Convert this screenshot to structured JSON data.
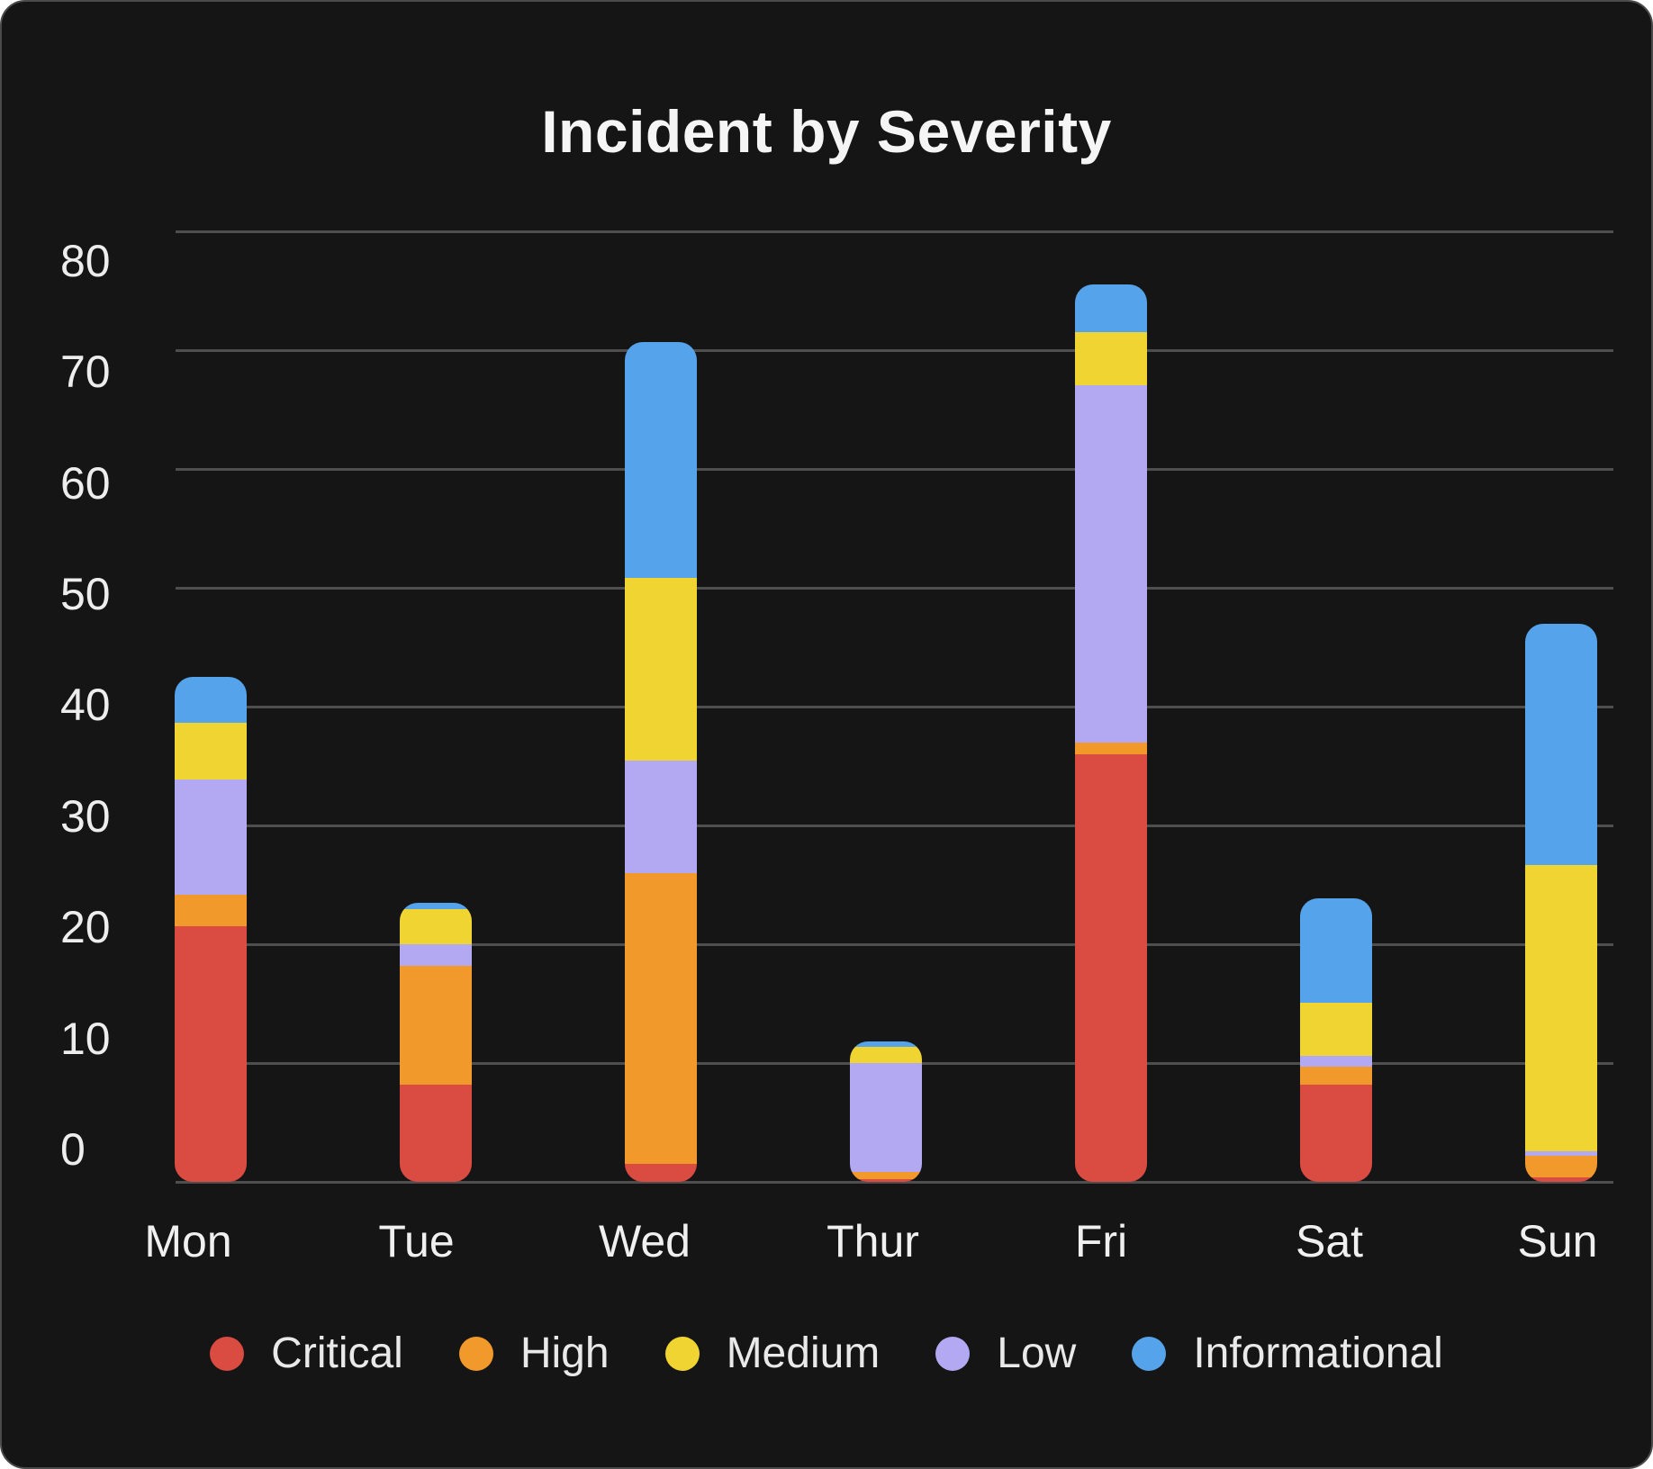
{
  "title": "Incident by Severity",
  "colors": {
    "critical": "#DA4B42",
    "high": "#F2992C",
    "medium": "#F0D431",
    "low": "#B3A8F2",
    "informational": "#55A3EA",
    "gridline": "#4E4E4E",
    "card_background": "#151515",
    "text": "#EFEFEF"
  },
  "legend": [
    {
      "label": "Critical",
      "key": "critical"
    },
    {
      "label": "High",
      "key": "high"
    },
    {
      "label": "Medium",
      "key": "medium"
    },
    {
      "label": "Low",
      "key": "low"
    },
    {
      "label": "Informational",
      "key": "informational"
    }
  ],
  "chart_data": {
    "type": "bar",
    "stacked": true,
    "title": "Incident by Severity",
    "xlabel": "",
    "ylabel": "",
    "categories": [
      "Mon",
      "Tue",
      "Wed",
      "Thur",
      "Fri",
      "Sat",
      "Sun"
    ],
    "series": [
      {
        "name": "Critical",
        "key": "critical",
        "values": [
          21.5,
          8.2,
          1.5,
          0.2,
          36.0,
          8.2,
          0.4
        ]
      },
      {
        "name": "High",
        "key": "high",
        "values": [
          2.7,
          10.0,
          24.5,
          0.6,
          1.0,
          1.5,
          1.8
        ]
      },
      {
        "name": "Medium",
        "key": "medium",
        "values": [
          4.8,
          3.0,
          15.4,
          1.4,
          4.5,
          4.5,
          24.1
        ]
      },
      {
        "name": "Low",
        "key": "low",
        "values": [
          9.7,
          1.8,
          9.5,
          9.2,
          30.1,
          0.9,
          0.4
        ]
      },
      {
        "name": "Informational",
        "key": "informational",
        "values": [
          3.8,
          0.5,
          19.8,
          0.4,
          4.0,
          8.8,
          20.3
        ]
      }
    ],
    "stack_order": [
      "critical",
      "high",
      "low",
      "medium",
      "informational"
    ],
    "y_ticks": [
      0,
      10,
      20,
      30,
      40,
      50,
      60,
      70,
      80
    ],
    "ylim": [
      0,
      85
    ],
    "grid": true,
    "legend_position": "bottom"
  }
}
